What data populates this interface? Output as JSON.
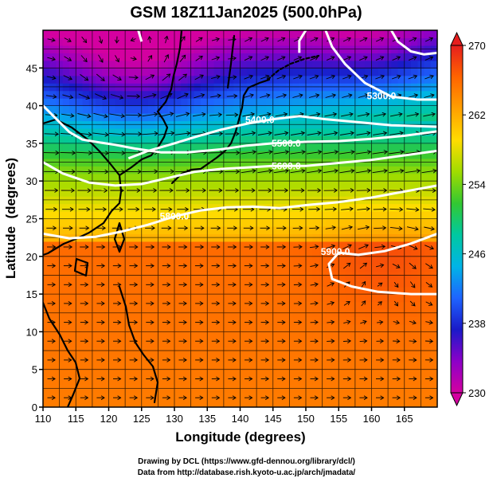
{
  "chart_data": {
    "type": "heatmap",
    "title": "GSM 18Z11Jan2025 (500.0hPa)",
    "xlabel": "Longitude (degrees)",
    "ylabel": "Latitude  (degrees)",
    "xlim": [
      110,
      170
    ],
    "ylim": [
      0,
      50
    ],
    "xticks": [
      110,
      115,
      120,
      125,
      130,
      135,
      140,
      145,
      150,
      155,
      160,
      165
    ],
    "yticks": [
      0,
      5,
      10,
      15,
      20,
      25,
      30,
      35,
      40,
      45
    ],
    "grid": true,
    "colorbar": {
      "ticks": [
        230,
        238,
        246,
        254,
        262,
        270
      ],
      "range": [
        230,
        270
      ],
      "colors": [
        "#d400a0",
        "#8c00c8",
        "#1a1ac8",
        "#1e64ff",
        "#00b4e6",
        "#00c8a0",
        "#32c832",
        "#a0dc00",
        "#ffdc00",
        "#ffa000",
        "#ff6400",
        "#e61e1e"
      ]
    },
    "contours": [
      {
        "label": "5400.0",
        "label_at": [
          143,
          38.1
        ],
        "points": [
          [
            123,
            33
          ],
          [
            126,
            34
          ],
          [
            130,
            35
          ],
          [
            133,
            35.8
          ],
          [
            137,
            36.8
          ],
          [
            141,
            37.6
          ],
          [
            145,
            38.2
          ],
          [
            149,
            38.6
          ],
          [
            153,
            38.2
          ],
          [
            158,
            37.8
          ],
          [
            163,
            37.4
          ],
          [
            170,
            37.2
          ]
        ]
      },
      {
        "label": "5500.0",
        "label_at": [
          147,
          35
        ],
        "points": [
          [
            110,
            40
          ],
          [
            114,
            36.5
          ],
          [
            116,
            35.5
          ],
          [
            118,
            35.2
          ],
          [
            121,
            34.8
          ],
          [
            124,
            34.3
          ],
          [
            128,
            33.8
          ],
          [
            132,
            33.8
          ],
          [
            137,
            34.2
          ],
          [
            141,
            34.7
          ],
          [
            145,
            35
          ],
          [
            150,
            35.2
          ],
          [
            155,
            35.3
          ],
          [
            160,
            35.6
          ],
          [
            165,
            36
          ],
          [
            170,
            36.6
          ]
        ]
      },
      {
        "label": "5600.0",
        "label_at": [
          147,
          32
        ],
        "points": [
          [
            110,
            32.5
          ],
          [
            113,
            31
          ],
          [
            117,
            29.8
          ],
          [
            121,
            29.4
          ],
          [
            125,
            29.6
          ],
          [
            129,
            30.4
          ],
          [
            133,
            31.2
          ],
          [
            137,
            31.6
          ],
          [
            141,
            31.8
          ],
          [
            145,
            32
          ],
          [
            150,
            32
          ],
          [
            155,
            32.4
          ],
          [
            160,
            32.8
          ],
          [
            165,
            33.4
          ],
          [
            170,
            34
          ]
        ]
      },
      {
        "label": "5800.0",
        "label_at": [
          130,
          25.3
        ],
        "points": [
          [
            110,
            23
          ],
          [
            114,
            22.4
          ],
          [
            118,
            22.6
          ],
          [
            122,
            23.3
          ],
          [
            126,
            24.2
          ],
          [
            130,
            25.3
          ],
          [
            134,
            26.1
          ],
          [
            138,
            26.5
          ],
          [
            142,
            26.6
          ],
          [
            146,
            26.4
          ],
          [
            150,
            26.8
          ],
          [
            155,
            27.2
          ],
          [
            160,
            27.8
          ],
          [
            165,
            28.6
          ],
          [
            170,
            29.4
          ]
        ]
      },
      {
        "label": "5900.0",
        "label_at": [
          154.5,
          20.6
        ],
        "points": [
          [
            170,
            23
          ],
          [
            166,
            21.7
          ],
          [
            162,
            20.7
          ],
          [
            158,
            20.2
          ],
          [
            155,
            20.5
          ],
          [
            153.5,
            19
          ],
          [
            154,
            17
          ],
          [
            157,
            16
          ],
          [
            161,
            15.3
          ],
          [
            166,
            15
          ],
          [
            170,
            15
          ]
        ]
      },
      {
        "label": "5300.0",
        "label_at": [
          161.5,
          41.3
        ],
        "points": [
          [
            153,
            50
          ],
          [
            154,
            47.8
          ],
          [
            156,
            45.5
          ],
          [
            159,
            43
          ],
          [
            163,
            41.2
          ],
          [
            167,
            40.8
          ],
          [
            170,
            40.8
          ]
        ]
      },
      {
        "label": "",
        "points": [
          [
            163,
            50
          ],
          [
            164,
            48.5
          ],
          [
            166,
            47.2
          ],
          [
            168,
            46.8
          ],
          [
            170,
            47
          ]
        ]
      },
      {
        "label": "",
        "points": [
          [
            150,
            50
          ],
          [
            149,
            48.6
          ],
          [
            149,
            47
          ]
        ]
      },
      {
        "label": "",
        "points": [
          [
            124.5,
            50
          ],
          [
            125,
            48.5
          ]
        ]
      }
    ]
  },
  "credits": {
    "line1": "Drawing by DCL (https://www.gfd-dennou.org/library/dcl/)",
    "line2": "Data from http://database.rish.kyoto-u.ac.jp/arch/jmadata/"
  }
}
